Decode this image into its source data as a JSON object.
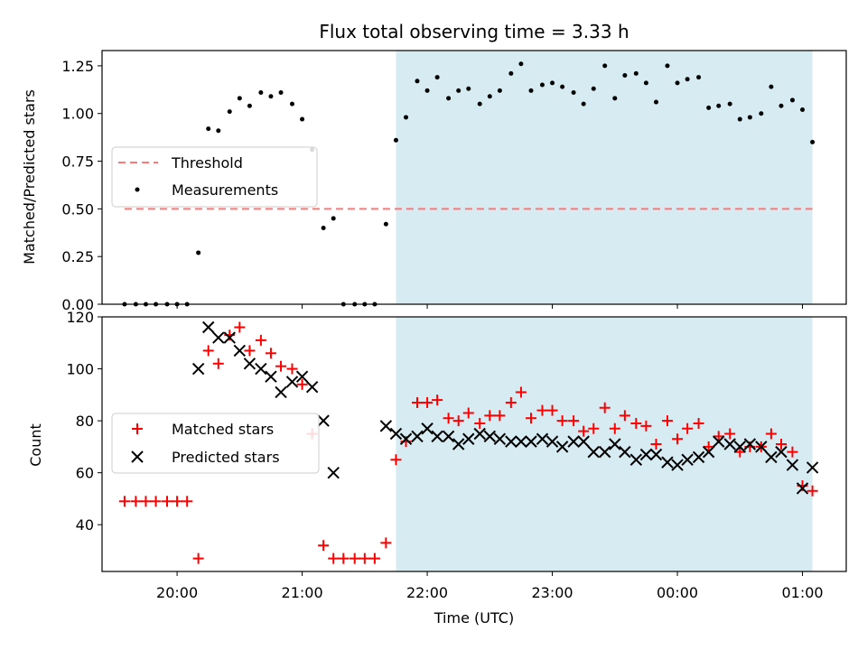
{
  "chart_data": [
    {
      "type": "scatter",
      "title": "Flux total observing time = 3.33 h",
      "xlabel": "",
      "ylabel": "Matched/Predicted stars",
      "xlim": [
        -0.6,
        5.35
      ],
      "ylim": [
        0,
        1.33
      ],
      "x_tick_labels": [
        "20:00",
        "21:00",
        "22:00",
        "23:00",
        "00:00",
        "01:00"
      ],
      "y_ticks": [
        "0.00",
        "0.25",
        "0.50",
        "0.75",
        "1.00",
        "1.25"
      ],
      "shaded_region": [
        1.75,
        5.08
      ],
      "threshold": {
        "name": "Threshold",
        "value": 0.5,
        "x_range": [
          -0.42,
          5.08
        ],
        "color": "#ff7777"
      },
      "legend": {
        "placement": "center-left",
        "entries": [
          "Threshold",
          "Measurements"
        ]
      },
      "series": [
        {
          "name": "Measurements",
          "color": "#000000",
          "points": [
            [
              -0.42,
              0.0
            ],
            [
              -0.33,
              0.0
            ],
            [
              -0.25,
              0.0
            ],
            [
              -0.17,
              0.0
            ],
            [
              -0.08,
              0.0
            ],
            [
              0.0,
              0.0
            ],
            [
              0.08,
              0.0
            ],
            [
              0.17,
              0.27
            ],
            [
              0.25,
              0.92
            ],
            [
              0.33,
              0.91
            ],
            [
              0.42,
              1.01
            ],
            [
              0.5,
              1.08
            ],
            [
              0.58,
              1.04
            ],
            [
              0.67,
              1.11
            ],
            [
              0.75,
              1.09
            ],
            [
              0.83,
              1.11
            ],
            [
              0.92,
              1.05
            ],
            [
              1.0,
              0.97
            ],
            [
              1.08,
              0.81
            ],
            [
              1.17,
              0.4
            ],
            [
              1.25,
              0.45
            ],
            [
              1.33,
              0.0
            ],
            [
              1.42,
              0.0
            ],
            [
              1.5,
              0.0
            ],
            [
              1.58,
              0.0
            ],
            [
              1.67,
              0.42
            ],
            [
              1.75,
              0.86
            ],
            [
              1.83,
              0.98
            ],
            [
              1.92,
              1.17
            ],
            [
              2.0,
              1.12
            ],
            [
              2.08,
              1.19
            ],
            [
              2.17,
              1.08
            ],
            [
              2.25,
              1.12
            ],
            [
              2.33,
              1.13
            ],
            [
              2.42,
              1.05
            ],
            [
              2.5,
              1.09
            ],
            [
              2.58,
              1.12
            ],
            [
              2.67,
              1.21
            ],
            [
              2.75,
              1.26
            ],
            [
              2.83,
              1.12
            ],
            [
              2.92,
              1.15
            ],
            [
              3.0,
              1.16
            ],
            [
              3.08,
              1.14
            ],
            [
              3.17,
              1.11
            ],
            [
              3.25,
              1.05
            ],
            [
              3.33,
              1.13
            ],
            [
              3.42,
              1.25
            ],
            [
              3.5,
              1.08
            ],
            [
              3.58,
              1.2
            ],
            [
              3.67,
              1.21
            ],
            [
              3.75,
              1.16
            ],
            [
              3.83,
              1.06
            ],
            [
              3.92,
              1.25
            ],
            [
              4.0,
              1.16
            ],
            [
              4.08,
              1.18
            ],
            [
              4.17,
              1.19
            ],
            [
              4.25,
              1.03
            ],
            [
              4.33,
              1.04
            ],
            [
              4.42,
              1.05
            ],
            [
              4.5,
              0.97
            ],
            [
              4.58,
              0.98
            ],
            [
              4.67,
              1.0
            ],
            [
              4.75,
              1.14
            ],
            [
              4.83,
              1.04
            ],
            [
              4.92,
              1.07
            ],
            [
              5.0,
              1.02
            ],
            [
              5.08,
              0.85
            ]
          ]
        }
      ]
    },
    {
      "type": "scatter",
      "title": "",
      "xlabel": "Time (UTC)",
      "ylabel": "Count",
      "xlim": [
        -0.6,
        5.35
      ],
      "ylim": [
        22,
        120
      ],
      "x_tick_labels": [
        "20:00",
        "21:00",
        "22:00",
        "23:00",
        "00:00",
        "01:00"
      ],
      "y_ticks": [
        "40",
        "60",
        "80",
        "100",
        "120"
      ],
      "shaded_region": [
        1.75,
        5.08
      ],
      "legend": {
        "placement": "center-left",
        "entries": [
          "Matched stars",
          "Predicted stars"
        ]
      },
      "series": [
        {
          "name": "Matched stars",
          "marker": "+",
          "color": "#ff0000",
          "points": [
            [
              -0.42,
              49
            ],
            [
              -0.33,
              49
            ],
            [
              -0.25,
              49
            ],
            [
              -0.17,
              49
            ],
            [
              -0.08,
              49
            ],
            [
              0.0,
              49
            ],
            [
              0.08,
              49
            ],
            [
              0.17,
              27
            ],
            [
              0.25,
              107
            ],
            [
              0.33,
              102
            ],
            [
              0.42,
              113
            ],
            [
              0.5,
              116
            ],
            [
              0.58,
              107
            ],
            [
              0.67,
              111
            ],
            [
              0.75,
              106
            ],
            [
              0.83,
              101
            ],
            [
              0.92,
              100
            ],
            [
              1.0,
              94
            ],
            [
              1.08,
              75
            ],
            [
              1.17,
              32
            ],
            [
              1.25,
              27
            ],
            [
              1.33,
              27
            ],
            [
              1.42,
              27
            ],
            [
              1.5,
              27
            ],
            [
              1.58,
              27
            ],
            [
              1.67,
              33
            ],
            [
              1.75,
              65
            ],
            [
              1.83,
              72
            ],
            [
              1.92,
              87
            ],
            [
              2.0,
              87
            ],
            [
              2.08,
              88
            ],
            [
              2.17,
              81
            ],
            [
              2.25,
              80
            ],
            [
              2.33,
              83
            ],
            [
              2.42,
              79
            ],
            [
              2.5,
              82
            ],
            [
              2.58,
              82
            ],
            [
              2.67,
              87
            ],
            [
              2.75,
              91
            ],
            [
              2.83,
              81
            ],
            [
              2.92,
              84
            ],
            [
              3.0,
              84
            ],
            [
              3.08,
              80
            ],
            [
              3.17,
              80
            ],
            [
              3.25,
              76
            ],
            [
              3.33,
              77
            ],
            [
              3.42,
              85
            ],
            [
              3.5,
              77
            ],
            [
              3.58,
              82
            ],
            [
              3.67,
              79
            ],
            [
              3.75,
              78
            ],
            [
              3.83,
              71
            ],
            [
              3.92,
              80
            ],
            [
              4.0,
              73
            ],
            [
              4.08,
              77
            ],
            [
              4.17,
              79
            ],
            [
              4.25,
              70
            ],
            [
              4.33,
              74
            ],
            [
              4.42,
              75
            ],
            [
              4.5,
              68
            ],
            [
              4.58,
              70
            ],
            [
              4.67,
              70
            ],
            [
              4.75,
              75
            ],
            [
              4.83,
              71
            ],
            [
              4.92,
              68
            ],
            [
              5.0,
              55
            ],
            [
              5.08,
              53
            ]
          ]
        },
        {
          "name": "Predicted stars",
          "marker": "x",
          "color": "#000000",
          "points": [
            [
              0.17,
              100
            ],
            [
              0.25,
              116
            ],
            [
              0.33,
              112
            ],
            [
              0.42,
              112
            ],
            [
              0.5,
              107
            ],
            [
              0.58,
              102
            ],
            [
              0.67,
              100
            ],
            [
              0.75,
              97
            ],
            [
              0.83,
              91
            ],
            [
              0.92,
              95
            ],
            [
              1.0,
              97
            ],
            [
              1.08,
              93
            ],
            [
              1.17,
              80
            ],
            [
              1.25,
              60
            ],
            [
              1.67,
              78
            ],
            [
              1.75,
              75
            ],
            [
              1.83,
              73
            ],
            [
              1.92,
              74
            ],
            [
              2.0,
              77
            ],
            [
              2.08,
              74
            ],
            [
              2.17,
              74
            ],
            [
              2.25,
              71
            ],
            [
              2.33,
              73
            ],
            [
              2.42,
              75
            ],
            [
              2.5,
              74
            ],
            [
              2.58,
              73
            ],
            [
              2.67,
              72
            ],
            [
              2.75,
              72
            ],
            [
              2.83,
              72
            ],
            [
              2.92,
              73
            ],
            [
              3.0,
              72
            ],
            [
              3.08,
              70
            ],
            [
              3.17,
              72
            ],
            [
              3.25,
              72
            ],
            [
              3.33,
              68
            ],
            [
              3.42,
              68
            ],
            [
              3.5,
              71
            ],
            [
              3.58,
              68
            ],
            [
              3.67,
              65
            ],
            [
              3.75,
              67
            ],
            [
              3.83,
              67
            ],
            [
              3.92,
              64
            ],
            [
              4.0,
              63
            ],
            [
              4.08,
              65
            ],
            [
              4.17,
              66
            ],
            [
              4.25,
              68
            ],
            [
              4.33,
              72
            ],
            [
              4.42,
              71
            ],
            [
              4.5,
              70
            ],
            [
              4.58,
              71
            ],
            [
              4.67,
              70
            ],
            [
              4.75,
              66
            ],
            [
              4.83,
              68
            ],
            [
              4.92,
              63
            ],
            [
              5.0,
              54
            ],
            [
              5.08,
              62
            ]
          ]
        }
      ]
    }
  ],
  "colors": {
    "shade": "#add8e6",
    "threshold": "#ff7777",
    "matched": "#ff0000",
    "predicted": "#000000",
    "measurement": "#000000"
  }
}
